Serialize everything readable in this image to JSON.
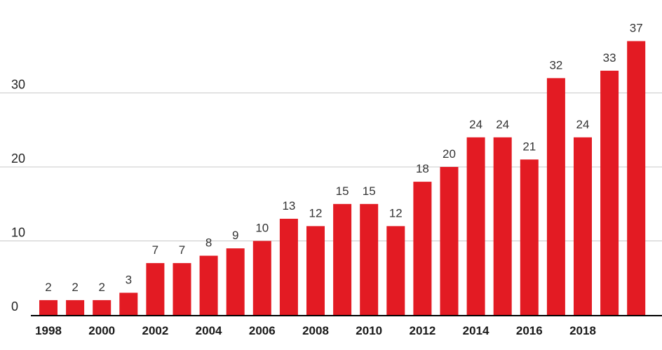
{
  "chart_data": {
    "type": "bar",
    "categories": [
      "1998",
      "1999",
      "2000",
      "2001",
      "2002",
      "2003",
      "2004",
      "2005",
      "2006",
      "2007",
      "2008",
      "2009",
      "2010",
      "2011",
      "2012",
      "2013",
      "2014",
      "2015",
      "2016",
      "2017",
      "2018",
      "2019",
      "2020"
    ],
    "values": [
      2,
      2,
      2,
      3,
      7,
      7,
      8,
      9,
      10,
      13,
      12,
      15,
      15,
      12,
      18,
      20,
      24,
      24,
      21,
      32,
      24,
      33,
      37
    ],
    "x_tick_labels": [
      "1998",
      "2000",
      "2002",
      "2004",
      "2006",
      "2008",
      "2010",
      "2012",
      "2014",
      "2016",
      "2018"
    ],
    "y_ticks": [
      0,
      10,
      20,
      30
    ],
    "ylim": [
      0,
      40
    ],
    "grid": true,
    "data_labels": true,
    "bar_color": "#e31b23",
    "title": "",
    "xlabel": "",
    "ylabel": ""
  }
}
